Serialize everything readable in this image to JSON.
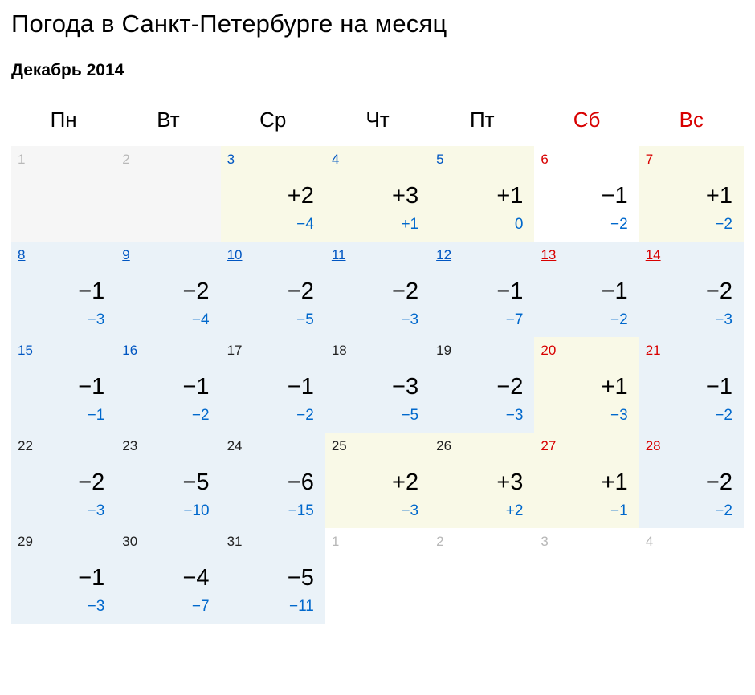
{
  "title": "Погода в Санкт-Петербурге на месяц",
  "subtitle": "Декабрь 2014",
  "dow": [
    "Пн",
    "Вт",
    "Ср",
    "Чт",
    "Пт",
    "Сб",
    "Вс"
  ],
  "dow_weekend": [
    false,
    false,
    false,
    false,
    false,
    true,
    true
  ],
  "colors": {
    "link_blue": "#0056c2",
    "link_red": "#d80000",
    "low_blue": "#0068cc",
    "muted": "#b8b8b8",
    "shade_blue": "#eaf2f8",
    "shade_yellow": "#f9f9e7",
    "shade_gray": "#f6f6f6"
  },
  "weeks": [
    [
      {
        "d": "1",
        "style": "muted",
        "shade": "gray"
      },
      {
        "d": "2",
        "style": "muted",
        "shade": "gray"
      },
      {
        "d": "3",
        "style": "link",
        "shade": "yellow",
        "hi": "+2",
        "lo": "−4"
      },
      {
        "d": "4",
        "style": "link",
        "shade": "yellow",
        "hi": "+3",
        "lo": "+1"
      },
      {
        "d": "5",
        "style": "link",
        "shade": "yellow",
        "hi": "+1",
        "lo": "0"
      },
      {
        "d": "6",
        "style": "link-red",
        "shade": "white",
        "hi": "−1",
        "lo": "−2"
      },
      {
        "d": "7",
        "style": "link-red",
        "shade": "yellow",
        "hi": "+1",
        "lo": "−2"
      }
    ],
    [
      {
        "d": "8",
        "style": "link",
        "shade": "blue",
        "hi": "−1",
        "lo": "−3"
      },
      {
        "d": "9",
        "style": "link",
        "shade": "blue",
        "hi": "−2",
        "lo": "−4"
      },
      {
        "d": "10",
        "style": "link",
        "shade": "blue",
        "hi": "−2",
        "lo": "−5"
      },
      {
        "d": "11",
        "style": "link",
        "shade": "blue",
        "hi": "−2",
        "lo": "−3"
      },
      {
        "d": "12",
        "style": "link",
        "shade": "blue",
        "hi": "−1",
        "lo": "−7"
      },
      {
        "d": "13",
        "style": "link-red",
        "shade": "blue",
        "hi": "−1",
        "lo": "−2"
      },
      {
        "d": "14",
        "style": "link-red",
        "shade": "blue",
        "hi": "−2",
        "lo": "−3"
      }
    ],
    [
      {
        "d": "15",
        "style": "link",
        "shade": "blue",
        "hi": "−1",
        "lo": "−1"
      },
      {
        "d": "16",
        "style": "link",
        "shade": "blue",
        "hi": "−1",
        "lo": "−2"
      },
      {
        "d": "17",
        "style": "plain",
        "shade": "blue",
        "hi": "−1",
        "lo": "−2"
      },
      {
        "d": "18",
        "style": "plain",
        "shade": "blue",
        "hi": "−3",
        "lo": "−5"
      },
      {
        "d": "19",
        "style": "plain",
        "shade": "blue",
        "hi": "−2",
        "lo": "−3"
      },
      {
        "d": "20",
        "style": "plain-red",
        "shade": "yellow",
        "hi": "+1",
        "lo": "−3"
      },
      {
        "d": "21",
        "style": "plain-red",
        "shade": "blue",
        "hi": "−1",
        "lo": "−2"
      }
    ],
    [
      {
        "d": "22",
        "style": "plain",
        "shade": "blue",
        "hi": "−2",
        "lo": "−3"
      },
      {
        "d": "23",
        "style": "plain",
        "shade": "blue",
        "hi": "−5",
        "lo": "−10"
      },
      {
        "d": "24",
        "style": "plain",
        "shade": "blue",
        "hi": "−6",
        "lo": "−15"
      },
      {
        "d": "25",
        "style": "plain",
        "shade": "yellow",
        "hi": "+2",
        "lo": "−3"
      },
      {
        "d": "26",
        "style": "plain",
        "shade": "yellow",
        "hi": "+3",
        "lo": "+2"
      },
      {
        "d": "27",
        "style": "plain-red",
        "shade": "yellow",
        "hi": "+1",
        "lo": "−1"
      },
      {
        "d": "28",
        "style": "plain-red",
        "shade": "blue",
        "hi": "−2",
        "lo": "−2"
      }
    ],
    [
      {
        "d": "29",
        "style": "plain",
        "shade": "blue",
        "hi": "−1",
        "lo": "−3"
      },
      {
        "d": "30",
        "style": "plain",
        "shade": "blue",
        "hi": "−4",
        "lo": "−7"
      },
      {
        "d": "31",
        "style": "plain",
        "shade": "blue",
        "hi": "−5",
        "lo": "−11"
      },
      {
        "d": "1",
        "style": "muted",
        "shade": "white"
      },
      {
        "d": "2",
        "style": "muted",
        "shade": "white"
      },
      {
        "d": "3",
        "style": "muted",
        "shade": "white"
      },
      {
        "d": "4",
        "style": "muted",
        "shade": "white"
      }
    ]
  ]
}
